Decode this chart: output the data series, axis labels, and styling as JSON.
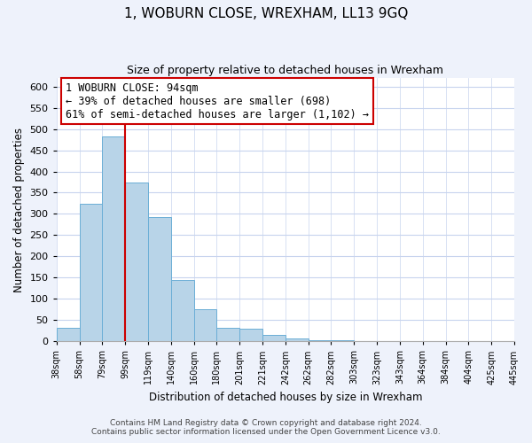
{
  "title": "1, WOBURN CLOSE, WREXHAM, LL13 9GQ",
  "subtitle": "Size of property relative to detached houses in Wrexham",
  "xlabel": "Distribution of detached houses by size in Wrexham",
  "ylabel": "Number of detached properties",
  "bar_values": [
    32,
    323,
    483,
    375,
    293,
    144,
    75,
    31,
    29,
    16,
    7,
    3,
    2,
    1,
    1,
    0,
    0,
    0,
    1,
    0
  ],
  "bar_labels": [
    "38sqm",
    "58sqm",
    "79sqm",
    "99sqm",
    "119sqm",
    "140sqm",
    "160sqm",
    "180sqm",
    "201sqm",
    "221sqm",
    "242sqm",
    "262sqm",
    "282sqm",
    "303sqm",
    "323sqm",
    "343sqm",
    "364sqm",
    "384sqm",
    "404sqm",
    "425sqm",
    "445sqm"
  ],
  "bar_color": "#b8d4e8",
  "bar_edge_color": "#6baed6",
  "annotation_box_color": "#ffffff",
  "annotation_border_color": "#cc0000",
  "property_line_color": "#cc0000",
  "property_line_x": 3,
  "annotation_line1": "1 WOBURN CLOSE: 94sqm",
  "annotation_line2": "← 39% of detached houses are smaller (698)",
  "annotation_line3": "61% of semi-detached houses are larger (1,102) →",
  "ylim": [
    0,
    620
  ],
  "yticks": [
    0,
    50,
    100,
    150,
    200,
    250,
    300,
    350,
    400,
    450,
    500,
    550,
    600
  ],
  "footer1": "Contains HM Land Registry data © Crown copyright and database right 2024.",
  "footer2": "Contains public sector information licensed under the Open Government Licence v3.0.",
  "bg_color": "#eef2fb",
  "plot_bg_color": "#ffffff",
  "grid_color": "#c8d4ee"
}
